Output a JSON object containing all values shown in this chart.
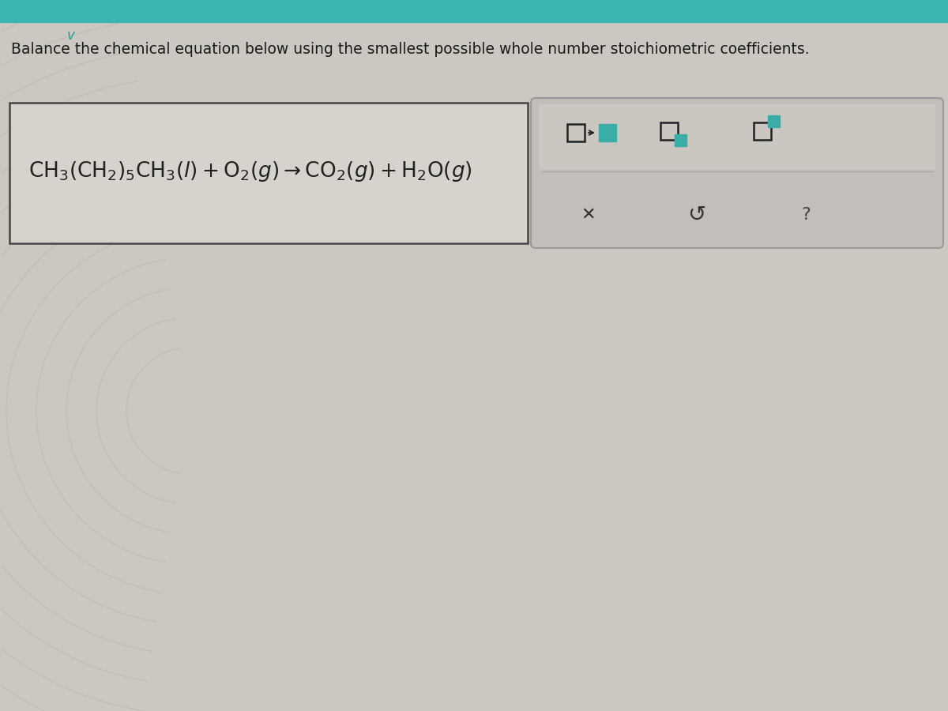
{
  "title_text": "Balance the chemical equation below using the smallest possible whole number stoichiometric coefficients.",
  "title_fontsize": 13.5,
  "title_color": "#1a1a1a",
  "bg_color": "#cbc8c2",
  "top_bar_color": "#3ab5b0",
  "chevron_color": "#2a9a96",
  "equation_box_facecolor": "#d8d5cf",
  "equation_box_edge": "#444444",
  "button_box_facecolor": "#c8c5bf",
  "button_box_edge": "#aaaaaa",
  "teal_color": "#3aada8",
  "dark_color": "#222222",
  "arc_color": "#bab6af",
  "figsize": [
    12,
    9
  ],
  "dpi": 100
}
